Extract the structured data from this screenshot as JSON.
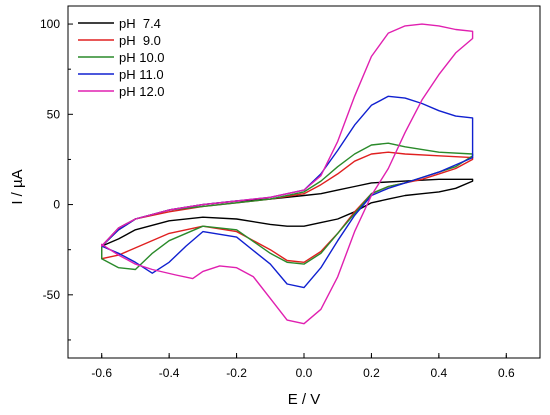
{
  "chart_data": {
    "type": "line",
    "title": "",
    "xlabel": "E / V",
    "ylabel": "I / µA",
    "xlim": [
      -0.7,
      0.7
    ],
    "ylim": [
      -85,
      110
    ],
    "x_ticks": [
      -0.6,
      -0.4,
      -0.2,
      0.0,
      0.2,
      0.4,
      0.6
    ],
    "x_tick_labels": [
      "-0.6",
      "-0.4",
      "-0.2",
      "0.0",
      "0.2",
      "0.4",
      "0.6"
    ],
    "y_ticks": [
      -50,
      0,
      50,
      100
    ],
    "y_tick_labels": [
      "-50",
      "0",
      "50",
      "100"
    ],
    "grid": false,
    "legend_position": "top-left",
    "series": [
      {
        "name": "pH  7.4",
        "color": "#000000",
        "points": [
          [
            -0.6,
            -23
          ],
          [
            -0.55,
            -13
          ],
          [
            -0.5,
            -8
          ],
          [
            -0.4,
            -3
          ],
          [
            -0.3,
            0
          ],
          [
            -0.2,
            2
          ],
          [
            -0.1,
            3
          ],
          [
            0.0,
            5
          ],
          [
            0.05,
            6
          ],
          [
            0.1,
            8
          ],
          [
            0.15,
            10
          ],
          [
            0.2,
            12
          ],
          [
            0.3,
            13
          ],
          [
            0.4,
            14
          ],
          [
            0.5,
            14
          ],
          [
            0.5,
            13
          ],
          [
            0.45,
            9
          ],
          [
            0.4,
            7
          ],
          [
            0.35,
            6
          ],
          [
            0.3,
            5
          ],
          [
            0.25,
            3
          ],
          [
            0.2,
            1
          ],
          [
            0.15,
            -4
          ],
          [
            0.1,
            -8
          ],
          [
            0.05,
            -10
          ],
          [
            0.0,
            -12
          ],
          [
            -0.05,
            -12
          ],
          [
            -0.1,
            -11
          ],
          [
            -0.2,
            -8
          ],
          [
            -0.3,
            -7
          ],
          [
            -0.4,
            -9
          ],
          [
            -0.5,
            -14
          ],
          [
            -0.55,
            -19
          ],
          [
            -0.6,
            -23
          ]
        ]
      },
      {
        "name": "pH  9.0",
        "color": "#e02020",
        "points": [
          [
            -0.6,
            -23
          ],
          [
            -0.55,
            -14
          ],
          [
            -0.5,
            -8
          ],
          [
            -0.4,
            -4
          ],
          [
            -0.3,
            -1
          ],
          [
            -0.2,
            1
          ],
          [
            -0.1,
            3
          ],
          [
            0.0,
            6
          ],
          [
            0.05,
            11
          ],
          [
            0.1,
            17
          ],
          [
            0.15,
            24
          ],
          [
            0.2,
            28
          ],
          [
            0.25,
            29
          ],
          [
            0.3,
            28
          ],
          [
            0.4,
            27
          ],
          [
            0.5,
            26
          ],
          [
            0.5,
            25
          ],
          [
            0.45,
            20
          ],
          [
            0.4,
            17
          ],
          [
            0.35,
            14
          ],
          [
            0.3,
            12
          ],
          [
            0.25,
            10
          ],
          [
            0.2,
            6
          ],
          [
            0.15,
            -4
          ],
          [
            0.1,
            -16
          ],
          [
            0.05,
            -26
          ],
          [
            0.0,
            -32
          ],
          [
            -0.05,
            -31
          ],
          [
            -0.1,
            -25
          ],
          [
            -0.2,
            -15
          ],
          [
            -0.3,
            -12
          ],
          [
            -0.4,
            -16
          ],
          [
            -0.5,
            -24
          ],
          [
            -0.55,
            -28
          ],
          [
            -0.6,
            -30
          ]
        ]
      },
      {
        "name": "pH 10.0",
        "color": "#2a8a2a",
        "points": [
          [
            -0.6,
            -23
          ],
          [
            -0.55,
            -14
          ],
          [
            -0.5,
            -8
          ],
          [
            -0.4,
            -3
          ],
          [
            -0.3,
            -1
          ],
          [
            -0.2,
            1
          ],
          [
            -0.1,
            3
          ],
          [
            0.0,
            7
          ],
          [
            0.05,
            13
          ],
          [
            0.1,
            21
          ],
          [
            0.15,
            28
          ],
          [
            0.2,
            33
          ],
          [
            0.25,
            34
          ],
          [
            0.3,
            32
          ],
          [
            0.4,
            29
          ],
          [
            0.5,
            28
          ],
          [
            0.5,
            27
          ],
          [
            0.45,
            21
          ],
          [
            0.4,
            18
          ],
          [
            0.35,
            15
          ],
          [
            0.3,
            12
          ],
          [
            0.25,
            10
          ],
          [
            0.2,
            6
          ],
          [
            0.15,
            -5
          ],
          [
            0.1,
            -16
          ],
          [
            0.05,
            -27
          ],
          [
            0.0,
            -33
          ],
          [
            -0.05,
            -32
          ],
          [
            -0.1,
            -27
          ],
          [
            -0.2,
            -14
          ],
          [
            -0.3,
            -12
          ],
          [
            -0.4,
            -20
          ],
          [
            -0.45,
            -27
          ],
          [
            -0.5,
            -36
          ],
          [
            -0.55,
            -35
          ],
          [
            -0.6,
            -30
          ]
        ]
      },
      {
        "name": "pH 11.0",
        "color": "#1020d0",
        "points": [
          [
            -0.6,
            -23
          ],
          [
            -0.55,
            -14
          ],
          [
            -0.5,
            -8
          ],
          [
            -0.4,
            -3
          ],
          [
            -0.3,
            0
          ],
          [
            -0.2,
            2
          ],
          [
            -0.1,
            4
          ],
          [
            0.0,
            8
          ],
          [
            0.05,
            17
          ],
          [
            0.1,
            30
          ],
          [
            0.15,
            44
          ],
          [
            0.2,
            55
          ],
          [
            0.25,
            60
          ],
          [
            0.3,
            59
          ],
          [
            0.35,
            56
          ],
          [
            0.4,
            52
          ],
          [
            0.45,
            49
          ],
          [
            0.5,
            48
          ],
          [
            0.5,
            26
          ],
          [
            0.45,
            22
          ],
          [
            0.4,
            18
          ],
          [
            0.35,
            15
          ],
          [
            0.3,
            12
          ],
          [
            0.25,
            9
          ],
          [
            0.2,
            5
          ],
          [
            0.15,
            -6
          ],
          [
            0.1,
            -20
          ],
          [
            0.05,
            -35
          ],
          [
            0.0,
            -46
          ],
          [
            -0.05,
            -44
          ],
          [
            -0.1,
            -33
          ],
          [
            -0.2,
            -18
          ],
          [
            -0.3,
            -15
          ],
          [
            -0.35,
            -23
          ],
          [
            -0.4,
            -32
          ],
          [
            -0.45,
            -38
          ],
          [
            -0.5,
            -32
          ],
          [
            -0.55,
            -27
          ],
          [
            -0.6,
            -23
          ]
        ]
      },
      {
        "name": "pH 12.0",
        "color": "#e020b0",
        "points": [
          [
            -0.6,
            -23
          ],
          [
            -0.55,
            -13
          ],
          [
            -0.5,
            -8
          ],
          [
            -0.4,
            -3
          ],
          [
            -0.3,
            0
          ],
          [
            -0.2,
            2
          ],
          [
            -0.1,
            4
          ],
          [
            0.0,
            8
          ],
          [
            0.05,
            16
          ],
          [
            0.1,
            35
          ],
          [
            0.15,
            60
          ],
          [
            0.2,
            82
          ],
          [
            0.25,
            95
          ],
          [
            0.3,
            99
          ],
          [
            0.35,
            100
          ],
          [
            0.4,
            99
          ],
          [
            0.45,
            97
          ],
          [
            0.5,
            96
          ],
          [
            0.5,
            92
          ],
          [
            0.45,
            84
          ],
          [
            0.4,
            72
          ],
          [
            0.35,
            58
          ],
          [
            0.3,
            40
          ],
          [
            0.25,
            20
          ],
          [
            0.2,
            5
          ],
          [
            0.15,
            -15
          ],
          [
            0.1,
            -40
          ],
          [
            0.05,
            -58
          ],
          [
            0.0,
            -66
          ],
          [
            -0.05,
            -64
          ],
          [
            -0.1,
            -52
          ],
          [
            -0.15,
            -40
          ],
          [
            -0.2,
            -35
          ],
          [
            -0.25,
            -34
          ],
          [
            -0.3,
            -37
          ],
          [
            -0.33,
            -41
          ],
          [
            -0.38,
            -39
          ],
          [
            -0.45,
            -36
          ],
          [
            -0.5,
            -33
          ],
          [
            -0.55,
            -28
          ],
          [
            -0.6,
            -22
          ]
        ]
      }
    ]
  }
}
